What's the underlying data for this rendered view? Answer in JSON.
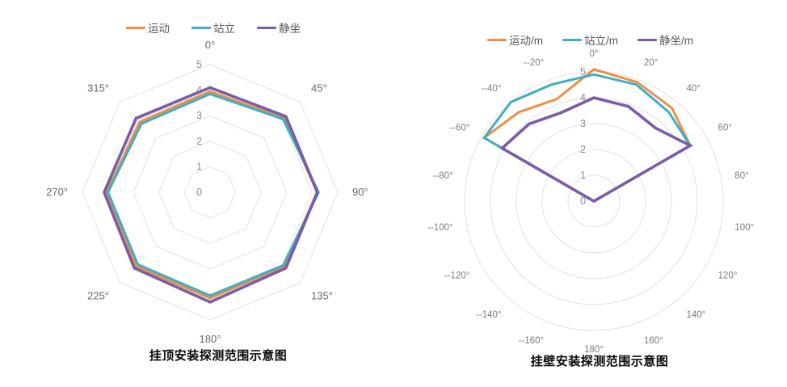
{
  "colors": {
    "motion": "#EE8F44",
    "standing": "#3FAEC4",
    "sitting": "#7B5CA6",
    "grid": "#E2E2E4",
    "tick_text": "#8C8C8C",
    "angle_text": "#696969",
    "legend_text": "#595959",
    "title_text": "#0A0A0A"
  },
  "chart_data": [
    {
      "type": "radar",
      "title": "挂顶安装探测范围示意图",
      "grid_shape": "polygon",
      "grid": true,
      "legend_position": "top",
      "rlim": [
        0,
        5
      ],
      "radial_ticks": [
        0,
        1,
        2,
        3,
        4,
        5
      ],
      "categories": [
        "0°",
        "45°",
        "90°",
        "135°",
        "180°",
        "225°",
        "270°",
        "315°"
      ],
      "angles_deg": [
        0,
        45,
        90,
        135,
        180,
        225,
        270,
        315
      ],
      "series": [
        {
          "name": "运动",
          "color_key": "motion",
          "values": [
            3.95,
            4.1,
            4.2,
            4.1,
            4.15,
            4.1,
            4.05,
            3.9
          ]
        },
        {
          "name": "站立",
          "color_key": "standing",
          "values": [
            3.85,
            4.05,
            4.25,
            4.05,
            4.05,
            4.0,
            4.0,
            3.8
          ]
        },
        {
          "name": "静坐",
          "color_key": "sitting",
          "values": [
            4.1,
            4.2,
            4.2,
            4.2,
            4.3,
            4.2,
            4.15,
            4.1
          ]
        }
      ]
    },
    {
      "type": "radar",
      "title": "挂壁安装探测范围示意图",
      "grid_shape": "circle",
      "grid": true,
      "legend_position": "top",
      "rlim": [
        0,
        5
      ],
      "radial_ticks": [
        0,
        1,
        2,
        3,
        4,
        5
      ],
      "categories": [
        "0°",
        "20°",
        "40°",
        "60°",
        "80°",
        "100°",
        "120°",
        "140°",
        "160°",
        "180°",
        "--160°",
        "--140°",
        "--120°",
        "--100°",
        "--80°",
        "--60°",
        "--40°",
        "--20°"
      ],
      "angles_deg": [
        0,
        20,
        40,
        60,
        80,
        100,
        120,
        140,
        160,
        180,
        200,
        220,
        240,
        260,
        280,
        300,
        320,
        340
      ],
      "series": [
        {
          "name": "运动/m",
          "color_key": "motion",
          "values": [
            5.1,
            4.9,
            4.7,
            4.3,
            0,
            0,
            0,
            0,
            0,
            0,
            0,
            0,
            0,
            0,
            0,
            4.9,
            4.5,
            4.2
          ]
        },
        {
          "name": "站立/m",
          "color_key": "standing",
          "values": [
            4.9,
            4.8,
            4.5,
            4.3,
            0,
            0,
            0,
            0,
            0,
            0,
            0,
            0,
            0,
            0,
            0,
            4.9,
            5.0,
            4.8
          ]
        },
        {
          "name": "静坐/m",
          "color_key": "sitting",
          "values": [
            4.0,
            3.9,
            3.7,
            4.3,
            0,
            0,
            0,
            0,
            0,
            0,
            0,
            0,
            0,
            0,
            0,
            4.1,
            3.9,
            3.65
          ]
        }
      ]
    }
  ]
}
